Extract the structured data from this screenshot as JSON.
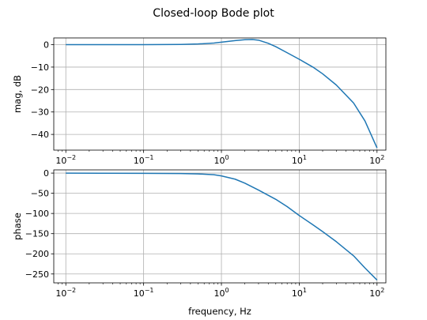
{
  "suptitle": "Closed-loop Bode plot",
  "chart_data": [
    {
      "type": "line",
      "ylabel": "mag, dB",
      "xscale": "log",
      "xlim": [
        0.007,
        130
      ],
      "ylim": [
        -47,
        3
      ],
      "grid": true,
      "xticks": [
        {
          "base": "10",
          "exp": "−2"
        },
        {
          "base": "10",
          "exp": "−1"
        },
        {
          "base": "10",
          "exp": "0"
        },
        {
          "base": "10",
          "exp": "1"
        },
        {
          "base": "10",
          "exp": "2"
        }
      ],
      "xtick_values": [
        0.01,
        0.1,
        1,
        10,
        100
      ],
      "yticks": [
        0,
        -10,
        -20,
        -30,
        -40
      ],
      "ytick_labels": [
        "0",
        "−10",
        "−20",
        "−30",
        "−40"
      ],
      "series": [
        {
          "color": "#1f77b4",
          "x": [
            0.01,
            0.1,
            0.3,
            0.5,
            0.8,
            1.0,
            1.5,
            2.0,
            2.5,
            3.0,
            4.0,
            5.0,
            7.0,
            10,
            15,
            20,
            30,
            50,
            70,
            100
          ],
          "y": [
            0,
            0,
            0.1,
            0.3,
            0.7,
            1.1,
            1.8,
            2.2,
            2.3,
            2.0,
            0.6,
            -0.9,
            -3.6,
            -6.5,
            -10,
            -13,
            -18,
            -26,
            -34,
            -46
          ]
        }
      ]
    },
    {
      "type": "line",
      "xlabel": "frequency, Hz",
      "ylabel": "phase",
      "xscale": "log",
      "xlim": [
        0.007,
        130
      ],
      "ylim": [
        -272,
        8
      ],
      "grid": true,
      "xticks": [
        {
          "base": "10",
          "exp": "−2"
        },
        {
          "base": "10",
          "exp": "−1"
        },
        {
          "base": "10",
          "exp": "0"
        },
        {
          "base": "10",
          "exp": "1"
        },
        {
          "base": "10",
          "exp": "2"
        }
      ],
      "xtick_values": [
        0.01,
        0.1,
        1,
        10,
        100
      ],
      "yticks": [
        0,
        -50,
        -100,
        -150,
        -200,
        -250
      ],
      "ytick_labels": [
        "0",
        "−50",
        "−100",
        "−150",
        "−200",
        "−250"
      ],
      "series": [
        {
          "color": "#1f77b4",
          "x": [
            0.01,
            0.1,
            0.3,
            0.5,
            0.8,
            1.0,
            1.5,
            2.0,
            3.0,
            5.0,
            7.0,
            10,
            15,
            20,
            30,
            50,
            70,
            100
          ],
          "y": [
            0,
            -0.5,
            -1,
            -2,
            -4,
            -7,
            -15,
            -25,
            -42,
            -65,
            -83,
            -105,
            -128,
            -145,
            -170,
            -205,
            -235,
            -265
          ]
        }
      ]
    }
  ]
}
